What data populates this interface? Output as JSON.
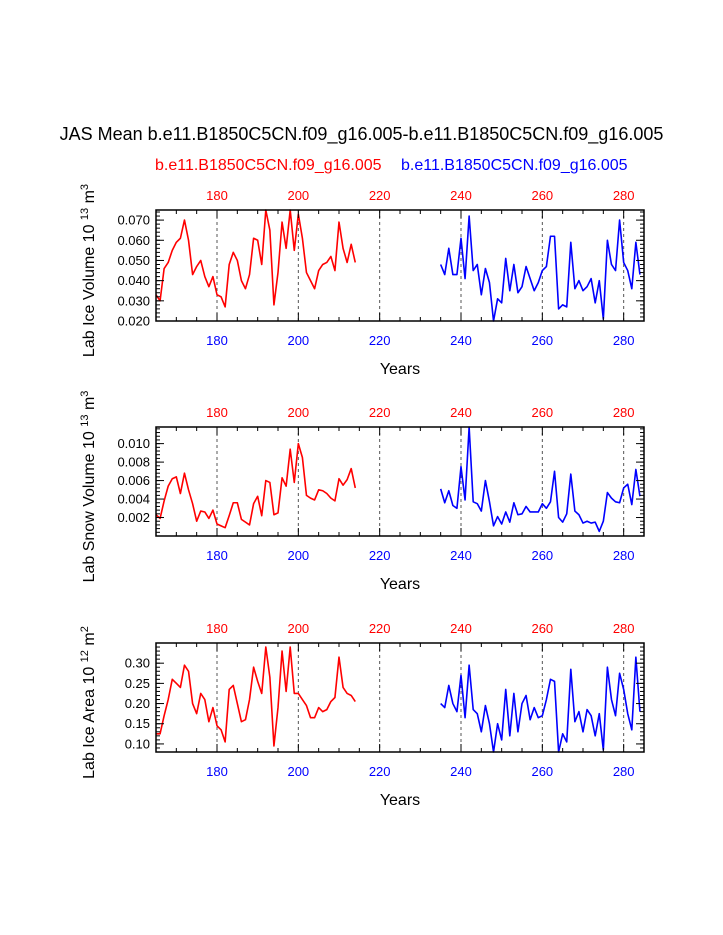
{
  "figure": {
    "title": "JAS Mean b.e11.B1850C5CN.f09_g16.005-b.e11.B1850C5CN.f09_g16.005",
    "left_case": "b.e11.B1850C5CN.f09_g16.005",
    "right_case": "b.e11.B1850C5CN.f09_g16.005",
    "colors": {
      "case1": "#ff0000",
      "case2": "#0000ff",
      "axis": "#000000"
    }
  },
  "chart_data": [
    {
      "type": "line",
      "id": "ice_volume",
      "title": "",
      "xlabel": "Years",
      "ylabel": "Lab Ice Volume 10",
      "ylabel_exp": "13",
      "ylabel_unit": "m",
      "ylabel_unit_exp": "3",
      "xlim": [
        165,
        285
      ],
      "ylim": [
        0.02,
        0.075
      ],
      "yticks": [
        0.02,
        0.03,
        0.04,
        0.05,
        0.06,
        0.07
      ],
      "ytick_labels": [
        "0.020",
        "0.030",
        "0.040",
        "0.050",
        "0.060",
        "0.070"
      ],
      "xticks": [
        180,
        200,
        220,
        240,
        260,
        280
      ],
      "xtick_labels": [
        "180",
        "200",
        "220",
        "240",
        "260",
        "280"
      ],
      "top_xtick_labels": [
        "180",
        "200",
        "220",
        "240",
        "260",
        "280"
      ],
      "series": [
        {
          "name": "case1",
          "color": "#ff0000",
          "x_start": 165,
          "values": [
            0.033,
            0.03,
            0.046,
            0.049,
            0.055,
            0.059,
            0.061,
            0.07,
            0.06,
            0.043,
            0.047,
            0.05,
            0.042,
            0.037,
            0.042,
            0.033,
            0.032,
            0.027,
            0.048,
            0.054,
            0.05,
            0.04,
            0.036,
            0.043,
            0.061,
            0.06,
            0.048,
            0.075,
            0.065,
            0.028,
            0.044,
            0.069,
            0.056,
            0.075,
            0.055,
            0.073,
            0.061,
            0.044,
            0.04,
            0.036,
            0.045,
            0.048,
            0.049,
            0.052,
            0.045,
            0.069,
            0.056,
            0.049,
            0.058,
            0.049
          ]
        },
        {
          "name": "case2",
          "color": "#0000ff",
          "x_start": 235,
          "values": [
            0.048,
            0.043,
            0.056,
            0.043,
            0.043,
            0.061,
            0.041,
            0.072,
            0.045,
            0.048,
            0.033,
            0.046,
            0.039,
            0.02,
            0.031,
            0.029,
            0.051,
            0.035,
            0.048,
            0.034,
            0.037,
            0.047,
            0.041,
            0.035,
            0.039,
            0.045,
            0.047,
            0.062,
            0.062,
            0.026,
            0.028,
            0.027,
            0.059,
            0.036,
            0.04,
            0.035,
            0.037,
            0.041,
            0.029,
            0.04,
            0.021,
            0.06,
            0.048,
            0.045,
            0.07,
            0.049,
            0.045,
            0.036,
            0.059,
            0.043
          ]
        }
      ]
    },
    {
      "type": "line",
      "id": "snow_volume",
      "title": "",
      "xlabel": "Years",
      "ylabel": "Lab Snow Volume 10",
      "ylabel_exp": "13",
      "ylabel_unit": "m",
      "ylabel_unit_exp": "3",
      "xlim": [
        165,
        285
      ],
      "ylim": [
        0.0,
        0.0118
      ],
      "yticks": [
        0.002,
        0.004,
        0.006,
        0.008,
        0.01
      ],
      "ytick_labels": [
        "0.002",
        "0.004",
        "0.006",
        "0.008",
        "0.010"
      ],
      "xticks": [
        180,
        200,
        220,
        240,
        260,
        280
      ],
      "xtick_labels": [
        "180",
        "200",
        "220",
        "240",
        "260",
        "280"
      ],
      "top_xtick_labels": [
        "180",
        "200",
        "220",
        "240",
        "260",
        "280"
      ],
      "series": [
        {
          "name": "case1",
          "color": "#ff0000",
          "x_start": 165,
          "values": [
            0.0023,
            0.0019,
            0.0038,
            0.0054,
            0.0062,
            0.0064,
            0.0046,
            0.0068,
            0.005,
            0.0035,
            0.0016,
            0.0027,
            0.0026,
            0.0019,
            0.0028,
            0.0013,
            0.0011,
            0.0009,
            0.0022,
            0.0036,
            0.0036,
            0.0018,
            0.0015,
            0.0012,
            0.0035,
            0.0043,
            0.0022,
            0.006,
            0.0058,
            0.0023,
            0.0025,
            0.0063,
            0.0054,
            0.0094,
            0.0058,
            0.01,
            0.0085,
            0.0044,
            0.0041,
            0.0039,
            0.005,
            0.0049,
            0.0046,
            0.0041,
            0.0038,
            0.0062,
            0.0055,
            0.0061,
            0.0073,
            0.0052
          ]
        },
        {
          "name": "case2",
          "color": "#0000ff",
          "x_start": 235,
          "values": [
            0.0051,
            0.0036,
            0.0049,
            0.0033,
            0.003,
            0.0075,
            0.0039,
            0.0118,
            0.0037,
            0.0035,
            0.0027,
            0.006,
            0.0037,
            0.0011,
            0.0021,
            0.0013,
            0.0026,
            0.0015,
            0.0036,
            0.0023,
            0.0024,
            0.0032,
            0.0026,
            0.0026,
            0.0026,
            0.0035,
            0.003,
            0.0037,
            0.007,
            0.002,
            0.0015,
            0.0024,
            0.0067,
            0.0027,
            0.0023,
            0.0014,
            0.0016,
            0.0014,
            0.0015,
            0.0005,
            0.0016,
            0.0047,
            0.0041,
            0.0037,
            0.0036,
            0.0052,
            0.0056,
            0.0034,
            0.0072,
            0.0043
          ]
        }
      ]
    },
    {
      "type": "line",
      "id": "ice_area",
      "title": "",
      "xlabel": "Years",
      "ylabel": "Lab Ice Area 10",
      "ylabel_exp": "12",
      "ylabel_unit": "m",
      "ylabel_unit_exp": "2",
      "xlim": [
        165,
        285
      ],
      "ylim": [
        0.08,
        0.35
      ],
      "yticks": [
        0.1,
        0.15,
        0.2,
        0.25,
        0.3
      ],
      "ytick_labels": [
        "0.10",
        "0.15",
        "0.20",
        "0.25",
        "0.30"
      ],
      "xticks": [
        180,
        200,
        220,
        240,
        260,
        280
      ],
      "xtick_labels": [
        "180",
        "200",
        "220",
        "240",
        "260",
        "280"
      ],
      "top_xtick_labels": [
        "180",
        "200",
        "220",
        "240",
        "260",
        "280"
      ],
      "series": [
        {
          "name": "case1",
          "color": "#ff0000",
          "x_start": 165,
          "values": [
            0.125,
            0.125,
            0.17,
            0.21,
            0.26,
            0.25,
            0.24,
            0.295,
            0.28,
            0.2,
            0.175,
            0.225,
            0.21,
            0.155,
            0.19,
            0.145,
            0.135,
            0.105,
            0.235,
            0.245,
            0.2,
            0.155,
            0.16,
            0.21,
            0.29,
            0.255,
            0.225,
            0.34,
            0.265,
            0.095,
            0.19,
            0.33,
            0.23,
            0.34,
            0.225,
            0.225,
            0.21,
            0.195,
            0.165,
            0.165,
            0.19,
            0.18,
            0.185,
            0.205,
            0.215,
            0.315,
            0.24,
            0.225,
            0.22,
            0.205
          ]
        },
        {
          "name": "case2",
          "color": "#0000ff",
          "x_start": 235,
          "values": [
            0.2,
            0.19,
            0.245,
            0.2,
            0.18,
            0.27,
            0.165,
            0.295,
            0.185,
            0.175,
            0.13,
            0.195,
            0.15,
            0.08,
            0.15,
            0.11,
            0.235,
            0.12,
            0.225,
            0.13,
            0.2,
            0.22,
            0.16,
            0.19,
            0.165,
            0.17,
            0.21,
            0.26,
            0.255,
            0.08,
            0.125,
            0.105,
            0.285,
            0.155,
            0.18,
            0.13,
            0.185,
            0.17,
            0.12,
            0.175,
            0.085,
            0.29,
            0.21,
            0.17,
            0.275,
            0.235,
            0.175,
            0.135,
            0.315,
            0.18
          ]
        }
      ]
    }
  ]
}
